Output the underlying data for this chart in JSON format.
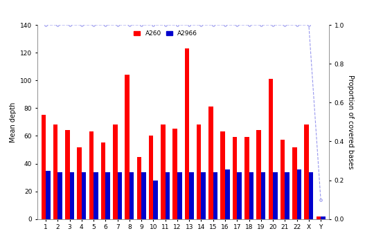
{
  "categories": [
    "1",
    "2",
    "3",
    "4",
    "5",
    "6",
    "7",
    "8",
    "9",
    "10",
    "11",
    "12",
    "13",
    "14",
    "15",
    "16",
    "17",
    "18",
    "19",
    "20",
    "21",
    "22",
    "X",
    "Y"
  ],
  "red_values": [
    75,
    68,
    64,
    52,
    63,
    55,
    68,
    104,
    45,
    60,
    68,
    65,
    123,
    68,
    81,
    63,
    59,
    59,
    64,
    101,
    57,
    52,
    68,
    2
  ],
  "blue_values": [
    35,
    34,
    34,
    34,
    34,
    34,
    34,
    34,
    34,
    28,
    34,
    34,
    34,
    34,
    34,
    36,
    34,
    34,
    34,
    34,
    34,
    36,
    34,
    2
  ],
  "line_values": [
    1.0,
    1.0,
    1.0,
    1.0,
    1.0,
    1.0,
    1.0,
    1.0,
    1.0,
    1.0,
    1.0,
    1.0,
    1.0,
    1.0,
    1.0,
    1.0,
    1.0,
    1.0,
    1.0,
    1.0,
    1.0,
    1.0,
    1.0,
    0.1
  ],
  "bar_width": 0.38,
  "red_color": "#FF0000",
  "blue_color": "#0000CC",
  "line_color": "#9999EE",
  "ylabel_left": "Mean depth",
  "ylabel_right": "Proportion of covered bases",
  "ylim_left": [
    0,
    140
  ],
  "ylim_right": [
    0.0,
    1.0
  ],
  "yticks_left": [
    0,
    20,
    40,
    60,
    80,
    100,
    120,
    140
  ],
  "yticks_right": [
    0.0,
    0.2,
    0.4,
    0.6,
    0.8,
    1.0
  ],
  "legend_labels": [
    "A260",
    "A2966"
  ],
  "legend_colors": [
    "#FF0000",
    "#0000CC"
  ],
  "bg_color": "#FFFFFF"
}
